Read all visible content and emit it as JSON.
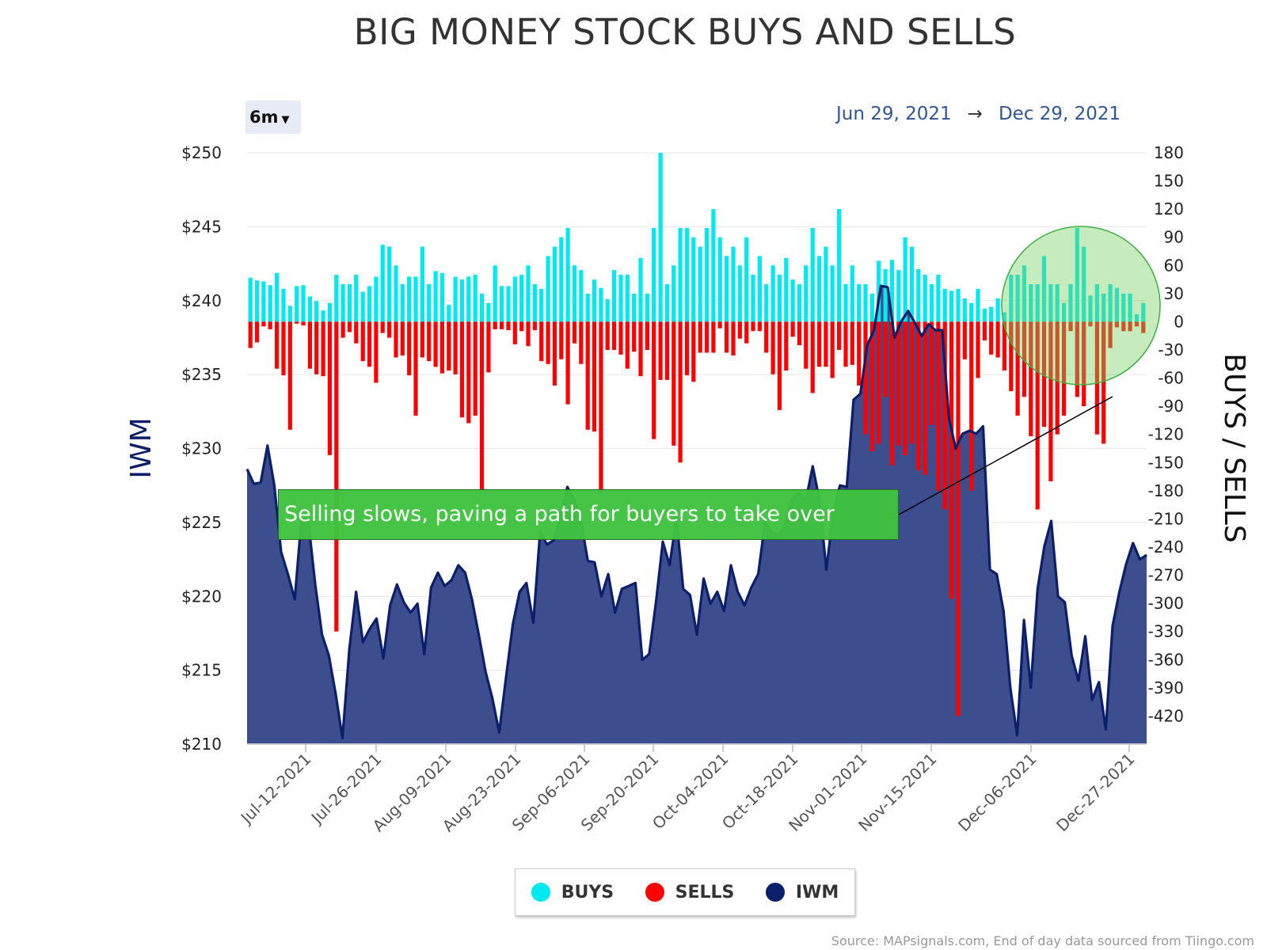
{
  "title": "BIG MONEY STOCK BUYS AND SELLS",
  "range_selector": {
    "label": "6m",
    "icon": "caret-down-icon"
  },
  "date_range": {
    "start": "Jun 29, 2021",
    "arrow": "→",
    "end": "Dec 29, 2021"
  },
  "annotation": {
    "text": "Selling slows, paving a path for buyers to take over",
    "color": "#3fc33f"
  },
  "source": "Source: MAPsignals.com, End of day data sourced from Tiingo.com",
  "legend": [
    {
      "label": "BUYS",
      "color": "#00e8f0"
    },
    {
      "label": "SELLS",
      "color": "#ff0000"
    },
    {
      "label": "IWM",
      "color": "#0b1f6b"
    }
  ],
  "chart_data": {
    "type": "bar",
    "ylabel_left": "IWM",
    "ylabel_right": "BUYS / SELLS",
    "ylim_left": [
      210,
      250
    ],
    "yticks_left": [
      "$210",
      "$215",
      "$220",
      "$225",
      "$230",
      "$235",
      "$240",
      "$245",
      "$250"
    ],
    "ylim_right": [
      -450,
      180
    ],
    "yticks_right": [
      -420,
      -390,
      -360,
      -330,
      -300,
      -270,
      -240,
      -210,
      -180,
      -150,
      -120,
      -90,
      -60,
      -30,
      0,
      30,
      60,
      90,
      120,
      150,
      180
    ],
    "xticks": [
      "Jul-12-2021",
      "Jul-26-2021",
      "Aug-09-2021",
      "Aug-23-2021",
      "Sep-06-2021",
      "Sep-20-2021",
      "Oct-04-2021",
      "Oct-18-2021",
      "Nov-01-2021",
      "Nov-15-2021",
      "Dec-06-2021",
      "Dec-27-2021"
    ],
    "grid": true,
    "legend_position": "bottom-center",
    "highlight": "circle around the last three weeks of bars (mid to late December)",
    "series": [
      {
        "name": "BUYS",
        "type": "bar",
        "color": "#00e8f0",
        "values": [
          47,
          44,
          43,
          39,
          52,
          35,
          17,
          38,
          39,
          27,
          22,
          12,
          20,
          50,
          40,
          40,
          50,
          32,
          38,
          48,
          82,
          80,
          60,
          40,
          48,
          48,
          80,
          40,
          54,
          52,
          18,
          48,
          45,
          48,
          50,
          30,
          20,
          60,
          38,
          38,
          48,
          50,
          60,
          40,
          35,
          70,
          80,
          90,
          100,
          60,
          55,
          30,
          45,
          36,
          24,
          55,
          50,
          50,
          30,
          68,
          30,
          100,
          180,
          40,
          60,
          100,
          100,
          90,
          80,
          100,
          120,
          90,
          70,
          80,
          60,
          90,
          50,
          70,
          40,
          60,
          50,
          68,
          45,
          40,
          60,
          100,
          70,
          80,
          60,
          120,
          40,
          60,
          40,
          40,
          30,
          65,
          56,
          66,
          55,
          90,
          80,
          56,
          50,
          40,
          50,
          35,
          33,
          35,
          25,
          20,
          35,
          14,
          16,
          25,
          10,
          50,
          50,
          60,
          40,
          40,
          70,
          40,
          40,
          20,
          40,
          100,
          80,
          28,
          40,
          30,
          40,
          36,
          30,
          30,
          8,
          20
        ],
        "x_start": "2021-06-29",
        "x_end": "2021-12-29"
      },
      {
        "name": "SELLS",
        "type": "bar",
        "color": "#ff0000",
        "values": [
          -28,
          -22,
          -5,
          -8,
          -50,
          -57,
          -115,
          -2,
          -4,
          -50,
          -56,
          -58,
          -142,
          -330,
          -17,
          -11,
          -23,
          -42,
          -48,
          -65,
          -12,
          -17,
          -38,
          -36,
          -57,
          -100,
          -38,
          -42,
          -48,
          -55,
          -52,
          -56,
          -102,
          -108,
          -100,
          -180,
          -54,
          -8,
          -8,
          -9,
          -24,
          -10,
          -26,
          -9,
          -42,
          -45,
          -68,
          -40,
          -88,
          -23,
          -45,
          -115,
          -117,
          -182,
          -30,
          -30,
          -35,
          -50,
          -32,
          -58,
          -30,
          -125,
          -62,
          -62,
          -132,
          -150,
          -57,
          -64,
          -33,
          -33,
          -33,
          -7,
          -33,
          -36,
          -18,
          -23,
          -10,
          -10,
          -33,
          -56,
          -94,
          -52,
          -16,
          -25,
          -50,
          -76,
          -48,
          -48,
          -60,
          -30,
          -48,
          -46,
          -68,
          -120,
          -138,
          -130,
          -80,
          -153,
          -132,
          -142,
          -130,
          -158,
          -163,
          -110,
          -180,
          -200,
          -295,
          -420,
          -40,
          -180,
          -60,
          -20,
          -35,
          -38,
          -52,
          -74,
          -100,
          -80,
          -122,
          -200,
          -112,
          -170,
          -120,
          -100,
          -10,
          -80,
          -90,
          -5,
          -120,
          -130,
          -28,
          -6,
          -10,
          -10,
          -5,
          -12
        ],
        "x_start": "2021-06-29",
        "x_end": "2021-12-29"
      },
      {
        "name": "IWM",
        "type": "area",
        "color": "#0b1f6b",
        "fill": "#3d4e8f",
        "values": [
          228.6,
          227.6,
          227.7,
          230.2,
          227.5,
          223.0,
          221.5,
          219.8,
          225.3,
          225.0,
          220.8,
          217.4,
          216.0,
          213.4,
          210.4,
          216.4,
          220.3,
          216.9,
          217.8,
          218.5,
          215.8,
          219.4,
          220.8,
          219.6,
          218.9,
          219.5,
          216.1,
          220.6,
          221.6,
          220.7,
          221.1,
          222.1,
          221.6,
          219.8,
          217.4,
          214.9,
          213.1,
          210.8,
          214.5,
          218.1,
          220.3,
          220.9,
          218.2,
          224.4,
          223.5,
          223.8,
          225.4,
          227.4,
          226.5,
          225.1,
          222.4,
          222.3,
          220.0,
          221.5,
          218.9,
          220.5,
          220.7,
          220.9,
          215.7,
          216.1,
          219.6,
          223.7,
          222.1,
          225.3,
          220.5,
          220.1,
          217.4,
          221.2,
          219.5,
          220.3,
          219.0,
          222.1,
          220.3,
          219.4,
          220.6,
          221.5,
          225.0,
          224.3,
          224.2,
          224.8,
          226.6,
          227.0,
          226.5,
          228.8,
          226.5,
          221.8,
          225.6,
          227.5,
          227.4,
          233.3,
          233.7,
          237.0,
          238.0,
          241.0,
          240.9,
          237.5,
          238.6,
          239.3,
          238.5,
          237.6,
          238.4,
          238.0,
          238.0,
          232.0,
          230.0,
          231.0,
          231.2,
          231.0,
          231.5,
          221.8,
          221.5,
          219.0,
          213.8,
          210.6,
          218.4,
          213.8,
          220.5,
          223.4,
          225.1,
          220.0,
          219.6,
          216.0,
          214.3,
          217.3,
          213.0,
          214.2,
          211.0,
          218.0,
          220.3,
          222.2,
          223.6,
          222.5,
          222.8
        ]
      }
    ]
  }
}
